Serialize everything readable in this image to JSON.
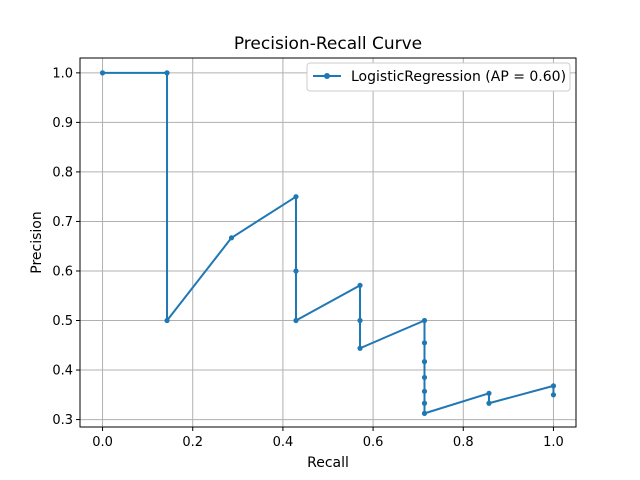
{
  "chart_data": {
    "type": "line",
    "title": "Precision-Recall Curve",
    "xlabel": "Recall",
    "ylabel": "Precision",
    "xlim": [
      -0.05,
      1.05
    ],
    "ylim": [
      0.285,
      1.03
    ],
    "xticks": [
      0,
      0.2,
      0.4,
      0.6,
      0.8,
      1.0
    ],
    "xtick_labels": [
      "0.0",
      "0.2",
      "0.4",
      "0.6",
      "0.8",
      "1.0"
    ],
    "yticks": [
      0.3,
      0.4,
      0.5,
      0.6,
      0.7,
      0.8,
      0.9,
      1.0
    ],
    "ytick_labels": [
      "0.3",
      "0.4",
      "0.5",
      "0.6",
      "0.7",
      "0.8",
      "0.9",
      "1.0"
    ],
    "grid": true,
    "legend_position": "top-right",
    "series": [
      {
        "name": "LogisticRegression (AP = 0.60)",
        "color": "#1f77b4",
        "marker": "dot",
        "points": [
          [
            0.0,
            1.0
          ],
          [
            0.143,
            1.0
          ],
          [
            0.143,
            0.5
          ],
          [
            0.286,
            0.667
          ],
          [
            0.429,
            0.75
          ],
          [
            0.429,
            0.6
          ],
          [
            0.429,
            0.5
          ],
          [
            0.571,
            0.571
          ],
          [
            0.571,
            0.5
          ],
          [
            0.571,
            0.444
          ],
          [
            0.714,
            0.5
          ],
          [
            0.714,
            0.455
          ],
          [
            0.714,
            0.417
          ],
          [
            0.714,
            0.385
          ],
          [
            0.714,
            0.357
          ],
          [
            0.714,
            0.333
          ],
          [
            0.714,
            0.3125
          ],
          [
            0.857,
            0.353
          ],
          [
            0.857,
            0.333
          ],
          [
            1.0,
            0.368
          ],
          [
            1.0,
            0.35
          ]
        ]
      }
    ]
  }
}
